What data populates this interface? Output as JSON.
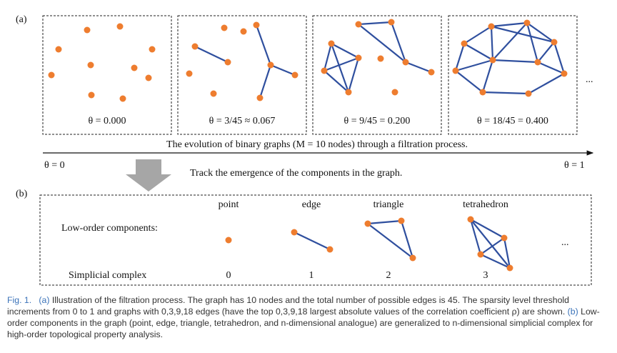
{
  "panel_a": {
    "label": "(a)",
    "graphs": [
      {
        "caption": "θ = 0.000"
      },
      {
        "caption": "θ = 3/45 ≈ 0.067"
      },
      {
        "caption": "θ = 9/45 = 0.200"
      },
      {
        "caption": "θ = 18/45 = 0.400"
      }
    ],
    "ellipsis": "...",
    "axis_caption": "The evolution of binary graphs (M = 10 nodes) through a filtration process.",
    "axis_start": "θ = 0",
    "axis_end": "θ = 1",
    "arrow_caption": "Track the emergence of the components in the graph."
  },
  "panel_b": {
    "label": "(b)",
    "row_components": "Low-order components:",
    "row_complex": "Simplicial complex",
    "components": [
      {
        "name": "point",
        "dimension": "0"
      },
      {
        "name": "edge",
        "dimension": "1"
      },
      {
        "name": "triangle",
        "dimension": "2"
      },
      {
        "name": "tetrahedron",
        "dimension": "3"
      }
    ],
    "ellipsis": "..."
  },
  "caption": {
    "figure": "Fig. 1.",
    "part_a_label": "(a)",
    "part_a_text": "Illustration of the filtration process. The graph has 10 nodes and the total number of possible edges is 45. The sparsity level threshold increments from 0 to 1 and graphs with 0,3,9,18 edges (have the top 0,3,9,18 largest absolute values of the correlation coefficient ρ) are shown.",
    "part_b_label": "(b)",
    "part_b_text": "Low-order components in the graph (point, edge, triangle, tetrahedron, and n-dimensional analogue) are generalized to n-dimensional simplicial complex for high-order topological property analysis."
  }
}
